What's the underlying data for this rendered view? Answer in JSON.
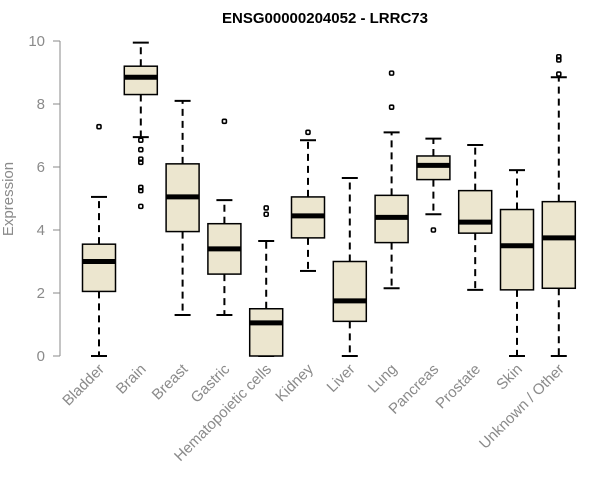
{
  "chart_data": {
    "type": "boxplot",
    "title": "ENSG00000204052 - LRRC73",
    "xlabel": "",
    "ylabel": "Expression",
    "ylim": [
      0,
      10
    ],
    "yticks": [
      0,
      2,
      4,
      6,
      8,
      10
    ],
    "categories": [
      "Bladder",
      "Brain",
      "Breast",
      "Gastric",
      "Hematopoietic cells",
      "Kidney",
      "Liver",
      "Lung",
      "Pancreas",
      "Prostate",
      "Skin",
      "Unknown / Other"
    ],
    "boxes": [
      {
        "name": "Bladder",
        "whisker_low": 0.0,
        "q1": 2.05,
        "median": 3.0,
        "q3": 3.55,
        "whisker_high": 5.05,
        "outliers": [
          7.28
        ]
      },
      {
        "name": "Brain",
        "whisker_low": 6.95,
        "q1": 8.3,
        "median": 8.85,
        "q3": 9.2,
        "whisker_high": 9.95,
        "outliers": [
          4.75,
          5.25,
          5.35,
          6.15,
          6.25,
          6.55,
          6.85
        ]
      },
      {
        "name": "Breast",
        "whisker_low": 1.3,
        "q1": 3.95,
        "median": 5.05,
        "q3": 6.1,
        "whisker_high": 8.1,
        "outliers": []
      },
      {
        "name": "Gastric",
        "whisker_low": 1.3,
        "q1": 2.6,
        "median": 3.4,
        "q3": 4.2,
        "whisker_high": 4.95,
        "outliers": [
          7.45
        ]
      },
      {
        "name": "Hematopoietic cells",
        "whisker_low": 0.0,
        "q1": 0.0,
        "median": 1.05,
        "q3": 1.5,
        "whisker_high": 3.65,
        "outliers": [
          4.5,
          4.7
        ]
      },
      {
        "name": "Kidney",
        "whisker_low": 2.7,
        "q1": 3.75,
        "median": 4.45,
        "q3": 5.05,
        "whisker_high": 6.85,
        "outliers": [
          7.1
        ]
      },
      {
        "name": "Liver",
        "whisker_low": 0.0,
        "q1": 1.1,
        "median": 1.75,
        "q3": 3.0,
        "whisker_high": 5.65,
        "outliers": []
      },
      {
        "name": "Lung",
        "whisker_low": 2.15,
        "q1": 3.6,
        "median": 4.4,
        "q3": 5.1,
        "whisker_high": 7.1,
        "outliers": [
          7.9,
          8.98
        ]
      },
      {
        "name": "Pancreas",
        "whisker_low": 4.5,
        "q1": 5.6,
        "median": 6.05,
        "q3": 6.35,
        "whisker_high": 6.9,
        "outliers": [
          4.0
        ]
      },
      {
        "name": "Prostate",
        "whisker_low": 2.1,
        "q1": 3.9,
        "median": 4.25,
        "q3": 5.25,
        "whisker_high": 6.7,
        "outliers": []
      },
      {
        "name": "Skin",
        "whisker_low": 0.0,
        "q1": 2.1,
        "median": 3.5,
        "q3": 4.65,
        "whisker_high": 5.9,
        "outliers": []
      },
      {
        "name": "Unknown / Other",
        "whisker_low": 0.0,
        "q1": 2.15,
        "median": 3.75,
        "q3": 4.9,
        "whisker_high": 8.85,
        "outliers": [
          8.95,
          9.4,
          9.5
        ]
      }
    ],
    "grid": false,
    "legend": "none"
  }
}
